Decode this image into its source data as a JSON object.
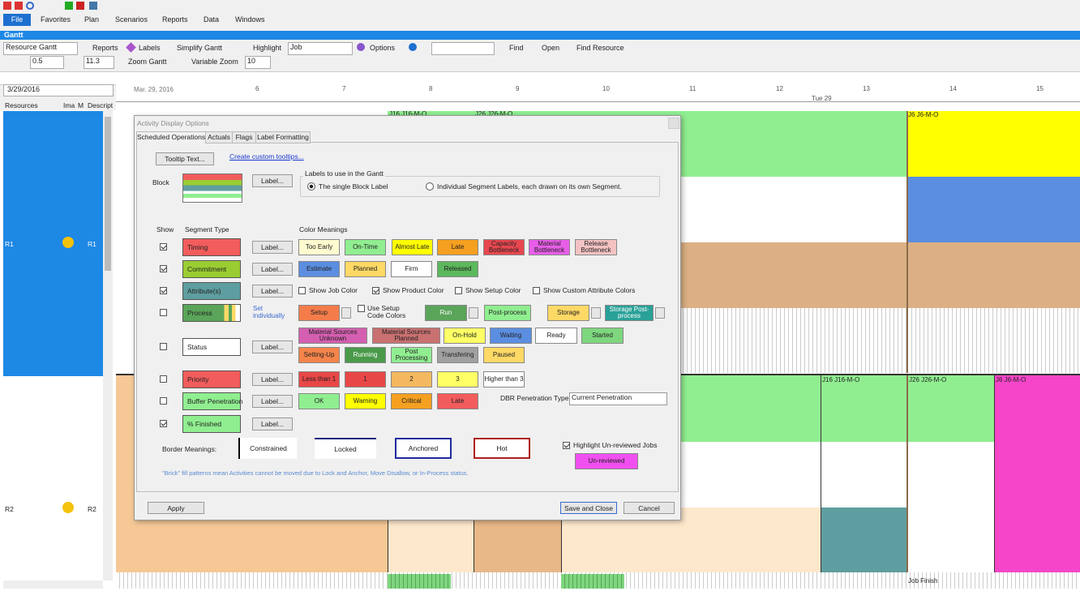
{
  "app": {
    "menu": [
      "File",
      "Favorites",
      "Plan",
      "Scenarios",
      "Reports",
      "Data",
      "Windows"
    ],
    "panel_title": "Gantt"
  },
  "toolbar": {
    "view": "Resource Gantt",
    "reports": "Reports",
    "labels": "Labels",
    "simplify": "Simplify Gantt",
    "highlight": "Highlight",
    "highlight_value": "Job",
    "options": "Options",
    "find": "Find",
    "open": "Open",
    "find_resource": "Find Resource",
    "zoom_in": "0.5",
    "zoom_out": "11.3",
    "zoom_gantt": "Zoom Gantt",
    "variable_zoom": "Variable Zoom",
    "variable_value": "10"
  },
  "gantt": {
    "date": "3/29/2016",
    "start_label": "Mar. 29, 2016",
    "day": "Tue 29",
    "hours": [
      "6",
      "7",
      "8",
      "9",
      "10",
      "11",
      "12",
      "13",
      "14",
      "15"
    ],
    "columns": [
      "Resources",
      "Ima",
      "M",
      "Descript"
    ],
    "resources": [
      {
        "name": "R1",
        "description": "R1"
      },
      {
        "name": "R2",
        "description": "R2"
      }
    ],
    "block_labels": [
      "J16 J16-M-O",
      "J26 J26-M-O",
      "J6 J6-M-O",
      "J16 J16-M-O",
      "J26 J26-M-O",
      "J6 J6-M-O",
      "Job Finish"
    ]
  },
  "dialog": {
    "title": "Activity Display Options",
    "tabs": [
      "Scheduled Operations",
      "Actuals",
      "Flags",
      "Label Formatting"
    ],
    "tooltip_button": "Tooltip Text...",
    "tooltip_link": "Create custom tooltips...",
    "block_label": "Block",
    "label_button": "Label...",
    "labels_group": "Labels to use in the Gantt",
    "label_options": [
      {
        "text": "The single Block Label",
        "selected": true
      },
      {
        "text": "Individual Segment Labels, each drawn on its own Segment.",
        "selected": false
      }
    ],
    "col_show": "Show",
    "col_segment": "Segment Type",
    "col_colors": "Color Meanings",
    "segments": [
      {
        "name": "Timing",
        "shown": true,
        "color": "#f25c5c"
      },
      {
        "name": "Commitment",
        "shown": true,
        "color": "#9acd32"
      },
      {
        "name": "Attribute(s)",
        "shown": true,
        "color": "#5f9ea0"
      },
      {
        "name": "Process",
        "shown": false,
        "color": "#5aa55a"
      },
      {
        "name": "Status",
        "shown": false,
        "color": "#ffffff"
      },
      {
        "name": "Priority",
        "shown": false,
        "color": "#f25c5c"
      },
      {
        "name": "Buffer Penetration",
        "shown": false,
        "color": "#90ee90"
      },
      {
        "name": "% Finished",
        "shown": true,
        "color": "#90ee90"
      }
    ],
    "set_individually": "Set individually",
    "color_rows": [
      [
        {
          "text": "Too Early",
          "color": "#fffbd0"
        },
        {
          "text": "On-Time",
          "color": "#90ee90"
        },
        {
          "text": "Almost Late",
          "color": "#ffff00"
        },
        {
          "text": "Late",
          "color": "#f5a020"
        },
        {
          "text": "Capacity Bottleneck",
          "color": "#e8474f"
        },
        {
          "text": "Material Bottleneck",
          "color": "#e85ee8"
        },
        {
          "text": "Release Bottleneck",
          "color": "#f4c2c2"
        }
      ],
      [
        {
          "text": "Estimate",
          "color": "#5b8ee0"
        },
        {
          "text": "Planned",
          "color": "#ffd966"
        },
        {
          "text": "Firm",
          "color": "#ffffff"
        },
        {
          "text": "Released",
          "color": "#5cb85c"
        }
      ],
      [
        {
          "text": "Setup",
          "color": "#f47c4a"
        },
        {
          "text": "Run",
          "color": "#5aa55a"
        },
        {
          "text": "Post-process",
          "color": "#90ee90"
        },
        {
          "text": "Storage",
          "color": "#ffd966"
        },
        {
          "text": "Storage Post-process",
          "color": "#2aa198"
        }
      ],
      [
        {
          "text": "Material Sources Unknown",
          "color": "#d45fb0"
        },
        {
          "text": "Material Sources Planned",
          "color": "#c97070"
        },
        {
          "text": "On-Hold",
          "color": "#ffff66"
        },
        {
          "text": "Waiting",
          "color": "#5b8ee0"
        },
        {
          "text": "Ready",
          "color": "#ffffff"
        },
        {
          "text": "Started",
          "color": "#7ed67e"
        }
      ],
      [
        {
          "text": "Setting-Up",
          "color": "#f4844a"
        },
        {
          "text": "Running",
          "color": "#4a9a4a"
        },
        {
          "text": "Post Processing",
          "color": "#90ee90"
        },
        {
          "text": "Transfering",
          "color": "#a0a0a0"
        },
        {
          "text": "Paused",
          "color": "#ffd966"
        }
      ],
      [
        {
          "text": "Less than 1",
          "color": "#e84747"
        },
        {
          "text": "1",
          "color": "#e84747"
        },
        {
          "text": "2",
          "color": "#f4b860"
        },
        {
          "text": "3",
          "color": "#ffff66"
        },
        {
          "text": "Higher than 3",
          "color": "#ffffff"
        }
      ],
      [
        {
          "text": "OK",
          "color": "#90ee90"
        },
        {
          "text": "Warning",
          "color": "#ffff00"
        },
        {
          "text": "Critical",
          "color": "#f5a020"
        },
        {
          "text": "Late",
          "color": "#f25c5c"
        }
      ]
    ],
    "attribute_options": [
      {
        "text": "Show Job Color",
        "checked": false
      },
      {
        "text": "Show Product Color",
        "checked": true
      },
      {
        "text": "Show Setup Color",
        "checked": false
      },
      {
        "text": "Show Custom Attribute Colors",
        "checked": false
      }
    ],
    "setup_code": {
      "text": "Use Setup Code Colors",
      "checked": false
    },
    "dbr_label": "DBR Penetration Type:",
    "dbr_value": "Current Penetration",
    "border_label": "Border Meanings:",
    "borders": [
      {
        "text": "Constrained",
        "color": "#000000"
      },
      {
        "text": "Locked",
        "color": "#1a237e"
      },
      {
        "text": "Anchored",
        "color": "#1f2a9e"
      },
      {
        "text": "Hot",
        "color": "#b02020"
      }
    ],
    "highlight": {
      "text": "Highlight Un-reviewed Jobs",
      "checked": true
    },
    "unreviewed": {
      "text": "Un-reviewed",
      "color": "#f050f0"
    },
    "note": "\"Brick\" fill patterns mean Activities cannot be moved due to Lock and Anchor, Move Disallow, or In-Process status.",
    "buttons": {
      "apply": "Apply",
      "save": "Save and Close",
      "cancel": "Cancel"
    }
  }
}
